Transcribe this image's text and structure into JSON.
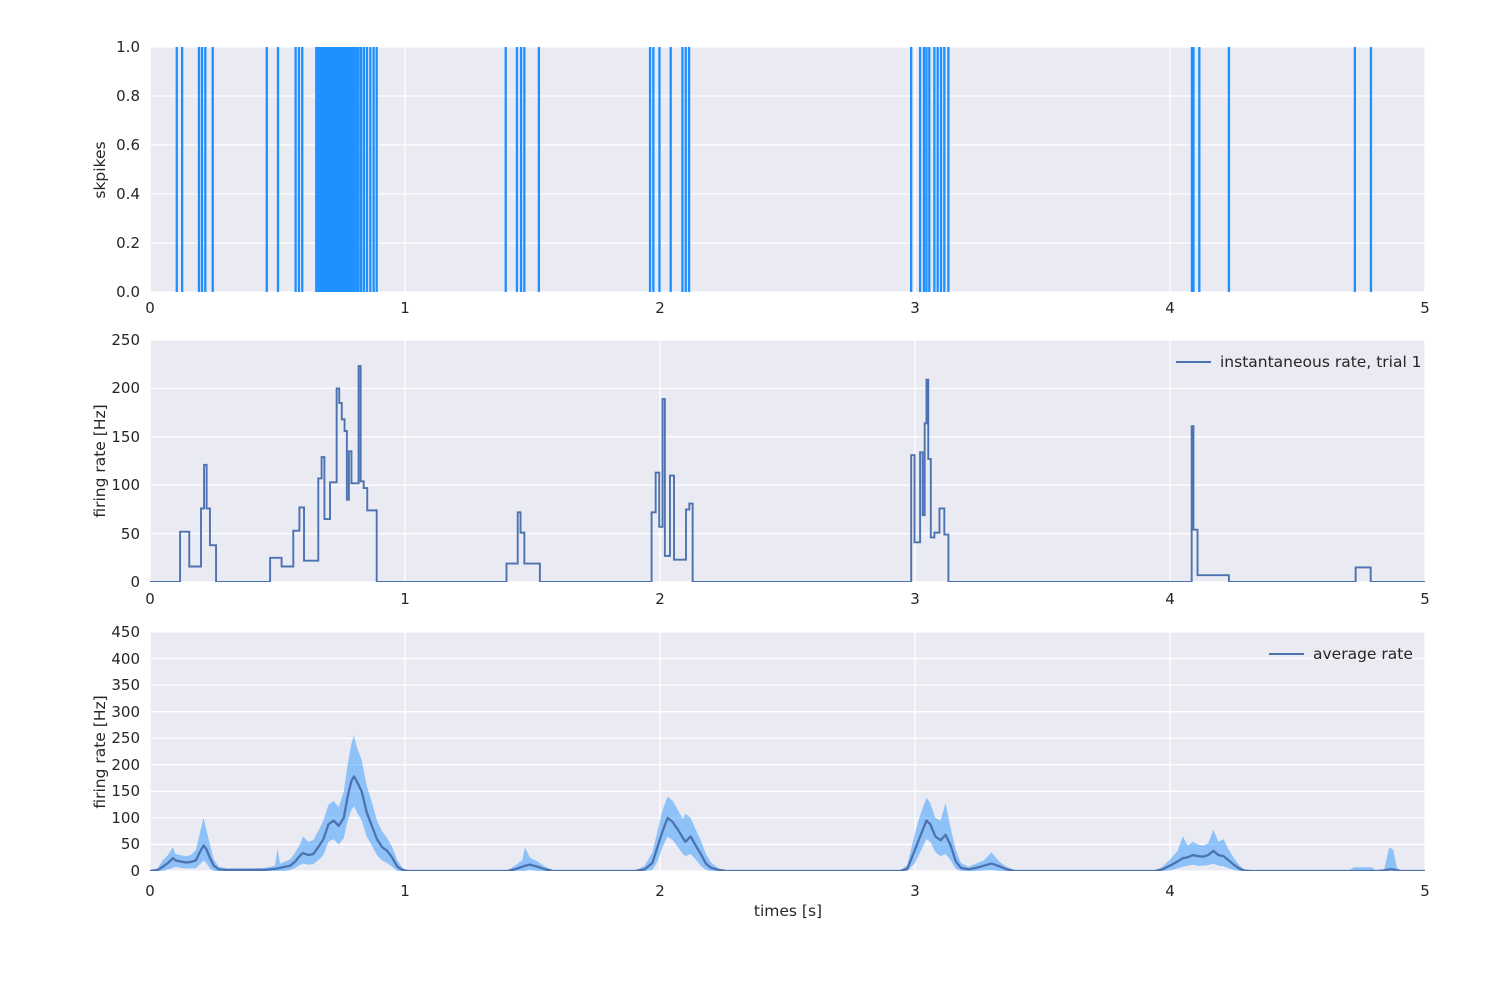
{
  "figure": {
    "background": "#ffffff",
    "axes_background": "#eaeaf2",
    "grid_color": "#ffffff",
    "text_color": "#262626",
    "spike_color": "#1e90ff",
    "line_color": "#4c72b0",
    "band_color": "rgba(30,144,255,0.45)"
  },
  "chart_data": [
    {
      "id": "spikes",
      "type": "event-raster",
      "ylabel": "skpikes",
      "xlim": [
        0,
        5
      ],
      "ylim": [
        0.0,
        1.0
      ],
      "xtick_labels": [
        "0",
        "1",
        "2",
        "3",
        "4",
        "5"
      ],
      "xtick_values": [
        0,
        1,
        2,
        3,
        4,
        5
      ],
      "ytick_labels": [
        "0.0",
        "0.2",
        "0.4",
        "0.6",
        "0.8",
        "1.0"
      ],
      "ytick_values": [
        0,
        0.2,
        0.4,
        0.6,
        0.8,
        1.0
      ],
      "grid": true,
      "legend": null,
      "spike_times": [
        0.105,
        0.126,
        0.192,
        0.204,
        0.217,
        0.246,
        0.458,
        0.502,
        0.571,
        0.584,
        0.597,
        0.652,
        0.66,
        0.668,
        0.676,
        0.684,
        0.691,
        0.698,
        0.705,
        0.712,
        0.719,
        0.726,
        0.733,
        0.74,
        0.747,
        0.754,
        0.761,
        0.768,
        0.776,
        0.784,
        0.792,
        0.8,
        0.809,
        0.818,
        0.828,
        0.839,
        0.851,
        0.864,
        0.877,
        0.889,
        1.395,
        1.439,
        1.455,
        1.468,
        1.525,
        1.961,
        1.974,
        1.998,
        2.042,
        2.088,
        2.101,
        2.114,
        2.985,
        3.02,
        3.035,
        3.045,
        3.056,
        3.076,
        3.089,
        3.102,
        3.115,
        3.131,
        4.086,
        4.092,
        4.115,
        4.231,
        4.725,
        4.788
      ]
    },
    {
      "id": "instantaneous",
      "type": "step-line",
      "ylabel": "firing rate [Hz]",
      "xlim": [
        0,
        5
      ],
      "ylim": [
        0,
        250
      ],
      "xtick_labels": [
        "0",
        "1",
        "2",
        "3",
        "4",
        "5"
      ],
      "xtick_values": [
        0,
        1,
        2,
        3,
        4,
        5
      ],
      "ytick_labels": [
        "0",
        "50",
        "100",
        "150",
        "200",
        "250"
      ],
      "ytick_values": [
        0,
        50,
        100,
        150,
        200,
        250
      ],
      "grid": true,
      "legend": "instantaneous rate, trial 1",
      "steps": [
        [
          0.0,
          0
        ],
        [
          0.118,
          52
        ],
        [
          0.154,
          16
        ],
        [
          0.2,
          76
        ],
        [
          0.212,
          121
        ],
        [
          0.222,
          76
        ],
        [
          0.235,
          38
        ],
        [
          0.259,
          0
        ],
        [
          0.471,
          25
        ],
        [
          0.516,
          16
        ],
        [
          0.562,
          53
        ],
        [
          0.586,
          77
        ],
        [
          0.604,
          22
        ],
        [
          0.66,
          107
        ],
        [
          0.673,
          129
        ],
        [
          0.684,
          65
        ],
        [
          0.706,
          103
        ],
        [
          0.732,
          200
        ],
        [
          0.742,
          185
        ],
        [
          0.752,
          168
        ],
        [
          0.763,
          156
        ],
        [
          0.772,
          85
        ],
        [
          0.78,
          135
        ],
        [
          0.79,
          102
        ],
        [
          0.818,
          223
        ],
        [
          0.826,
          104
        ],
        [
          0.838,
          97
        ],
        [
          0.852,
          74
        ],
        [
          0.889,
          0
        ],
        [
          1.398,
          19
        ],
        [
          1.442,
          72
        ],
        [
          1.453,
          51
        ],
        [
          1.468,
          19
        ],
        [
          1.529,
          0
        ],
        [
          1.967,
          72
        ],
        [
          1.983,
          113
        ],
        [
          1.997,
          57
        ],
        [
          2.01,
          189
        ],
        [
          2.019,
          27
        ],
        [
          2.039,
          110
        ],
        [
          2.055,
          23
        ],
        [
          2.102,
          75
        ],
        [
          2.115,
          81
        ],
        [
          2.128,
          0
        ],
        [
          2.985,
          131
        ],
        [
          2.998,
          41
        ],
        [
          3.02,
          134
        ],
        [
          3.03,
          69
        ],
        [
          3.038,
          164
        ],
        [
          3.045,
          209
        ],
        [
          3.052,
          127
        ],
        [
          3.062,
          46
        ],
        [
          3.076,
          51
        ],
        [
          3.096,
          76
        ],
        [
          3.115,
          49
        ],
        [
          3.131,
          0
        ],
        [
          4.085,
          161
        ],
        [
          4.092,
          54
        ],
        [
          4.108,
          7
        ],
        [
          4.231,
          0
        ],
        [
          4.728,
          15
        ],
        [
          4.787,
          0
        ]
      ]
    },
    {
      "id": "average",
      "type": "line-band",
      "ylabel": "firing rate [Hz]",
      "xlabel": "times [s]",
      "xlim": [
        0,
        5
      ],
      "ylim": [
        0,
        450
      ],
      "xtick_labels": [
        "0",
        "1",
        "2",
        "3",
        "4",
        "5"
      ],
      "xtick_values": [
        0,
        1,
        2,
        3,
        4,
        5
      ],
      "ytick_labels": [
        "0",
        "50",
        "100",
        "150",
        "200",
        "250",
        "300",
        "350",
        "400",
        "450"
      ],
      "ytick_values": [
        0,
        50,
        100,
        150,
        200,
        250,
        300,
        350,
        400,
        450
      ],
      "grid": true,
      "legend": "average rate",
      "points": [
        [
          0.0,
          0,
          0,
          0
        ],
        [
          0.03,
          2,
          0,
          5
        ],
        [
          0.05,
          8,
          0,
          20
        ],
        [
          0.07,
          15,
          3,
          30
        ],
        [
          0.09,
          24,
          6,
          45
        ],
        [
          0.1,
          20,
          8,
          32
        ],
        [
          0.12,
          18,
          6,
          30
        ],
        [
          0.14,
          16,
          5,
          28
        ],
        [
          0.16,
          17,
          5,
          30
        ],
        [
          0.18,
          20,
          5,
          40
        ],
        [
          0.195,
          35,
          12,
          70
        ],
        [
          0.21,
          48,
          20,
          100
        ],
        [
          0.22,
          42,
          15,
          80
        ],
        [
          0.235,
          25,
          5,
          50
        ],
        [
          0.25,
          10,
          0,
          22
        ],
        [
          0.27,
          3,
          0,
          8
        ],
        [
          0.3,
          2,
          0,
          5
        ],
        [
          0.4,
          2,
          0,
          5
        ],
        [
          0.45,
          2,
          0,
          6
        ],
        [
          0.49,
          4,
          0,
          10
        ],
        [
          0.5,
          5,
          0,
          42
        ],
        [
          0.51,
          6,
          0,
          14
        ],
        [
          0.53,
          8,
          0,
          18
        ],
        [
          0.55,
          10,
          2,
          22
        ],
        [
          0.57,
          18,
          6,
          35
        ],
        [
          0.59,
          30,
          12,
          52
        ],
        [
          0.6,
          34,
          14,
          65
        ],
        [
          0.62,
          30,
          12,
          55
        ],
        [
          0.64,
          32,
          13,
          58
        ],
        [
          0.66,
          45,
          20,
          75
        ],
        [
          0.68,
          60,
          30,
          95
        ],
        [
          0.7,
          88,
          55,
          125
        ],
        [
          0.72,
          95,
          60,
          132
        ],
        [
          0.74,
          85,
          50,
          120
        ],
        [
          0.76,
          100,
          62,
          150
        ],
        [
          0.775,
          140,
          95,
          200
        ],
        [
          0.79,
          170,
          115,
          240
        ],
        [
          0.8,
          178,
          122,
          255
        ],
        [
          0.81,
          170,
          112,
          235
        ],
        [
          0.83,
          150,
          95,
          210
        ],
        [
          0.85,
          110,
          65,
          160
        ],
        [
          0.87,
          85,
          48,
          130
        ],
        [
          0.89,
          60,
          30,
          95
        ],
        [
          0.91,
          45,
          20,
          75
        ],
        [
          0.93,
          38,
          15,
          62
        ],
        [
          0.95,
          25,
          8,
          45
        ],
        [
          0.97,
          8,
          0,
          20
        ],
        [
          0.99,
          2,
          0,
          6
        ],
        [
          1.01,
          0,
          0,
          0
        ],
        [
          1.4,
          0,
          0,
          0
        ],
        [
          1.43,
          3,
          0,
          10
        ],
        [
          1.46,
          8,
          0,
          20
        ],
        [
          1.47,
          10,
          0,
          45
        ],
        [
          1.49,
          12,
          2,
          25
        ],
        [
          1.52,
          8,
          0,
          18
        ],
        [
          1.55,
          3,
          0,
          8
        ],
        [
          1.58,
          0,
          0,
          2
        ],
        [
          1.62,
          0,
          0,
          0
        ],
        [
          1.9,
          0,
          0,
          0
        ],
        [
          1.94,
          3,
          0,
          10
        ],
        [
          1.97,
          15,
          2,
          35
        ],
        [
          1.99,
          45,
          18,
          75
        ],
        [
          2.01,
          75,
          45,
          115
        ],
        [
          2.03,
          100,
          65,
          140
        ],
        [
          2.05,
          92,
          58,
          132
        ],
        [
          2.07,
          78,
          45,
          115
        ],
        [
          2.09,
          62,
          32,
          98
        ],
        [
          2.1,
          55,
          28,
          108
        ],
        [
          2.12,
          65,
          32,
          100
        ],
        [
          2.14,
          48,
          22,
          78
        ],
        [
          2.16,
          32,
          10,
          58
        ],
        [
          2.18,
          14,
          2,
          32
        ],
        [
          2.2,
          6,
          0,
          16
        ],
        [
          2.23,
          2,
          0,
          5
        ],
        [
          2.26,
          0,
          0,
          0
        ],
        [
          2.94,
          0,
          0,
          0
        ],
        [
          2.97,
          4,
          0,
          12
        ],
        [
          3.0,
          40,
          15,
          72
        ],
        [
          3.02,
          65,
          35,
          105
        ],
        [
          3.045,
          95,
          60,
          138
        ],
        [
          3.06,
          88,
          55,
          128
        ],
        [
          3.08,
          65,
          35,
          100
        ],
        [
          3.1,
          58,
          28,
          95
        ],
        [
          3.12,
          68,
          32,
          128
        ],
        [
          3.14,
          48,
          20,
          80
        ],
        [
          3.16,
          18,
          4,
          40
        ],
        [
          3.18,
          6,
          0,
          15
        ],
        [
          3.21,
          3,
          0,
          8
        ],
        [
          3.24,
          6,
          0,
          14
        ],
        [
          3.27,
          10,
          1,
          20
        ],
        [
          3.3,
          14,
          2,
          35
        ],
        [
          3.33,
          9,
          0,
          18
        ],
        [
          3.36,
          3,
          0,
          8
        ],
        [
          3.39,
          0,
          0,
          2
        ],
        [
          3.42,
          0,
          0,
          0
        ],
        [
          3.94,
          0,
          0,
          0
        ],
        [
          3.97,
          3,
          0,
          8
        ],
        [
          4.0,
          10,
          1,
          22
        ],
        [
          4.03,
          18,
          5,
          38
        ],
        [
          4.05,
          24,
          8,
          65
        ],
        [
          4.07,
          26,
          10,
          48
        ],
        [
          4.09,
          30,
          12,
          55
        ],
        [
          4.11,
          28,
          10,
          50
        ],
        [
          4.13,
          27,
          10,
          48
        ],
        [
          4.15,
          30,
          11,
          52
        ],
        [
          4.17,
          38,
          14,
          78
        ],
        [
          4.19,
          30,
          10,
          55
        ],
        [
          4.21,
          28,
          9,
          60
        ],
        [
          4.23,
          20,
          5,
          40
        ],
        [
          4.25,
          12,
          2,
          25
        ],
        [
          4.27,
          5,
          0,
          12
        ],
        [
          4.29,
          1,
          0,
          3
        ],
        [
          4.32,
          0,
          0,
          0
        ],
        [
          4.7,
          0,
          0,
          0
        ],
        [
          4.72,
          0,
          0,
          7
        ],
        [
          4.79,
          0,
          0,
          7
        ],
        [
          4.81,
          0,
          0,
          0
        ],
        [
          4.84,
          1,
          0,
          4
        ],
        [
          4.86,
          3,
          0,
          45
        ],
        [
          4.875,
          3,
          0,
          40
        ],
        [
          4.89,
          1,
          0,
          6
        ],
        [
          4.91,
          0,
          0,
          0
        ],
        [
          5.0,
          0,
          0,
          0
        ]
      ]
    }
  ]
}
